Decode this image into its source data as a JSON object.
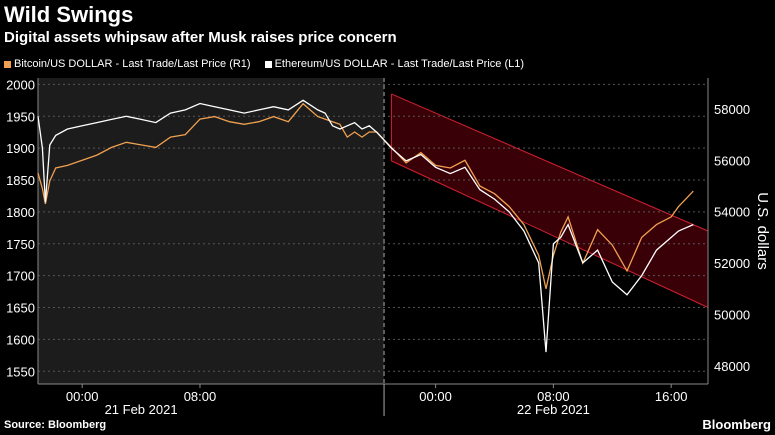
{
  "header": {
    "title": "Wild Swings",
    "subtitle": "Digital assets whipsaw after Musk raises price concern"
  },
  "legend": {
    "bitcoin": "Bitcoin/US DOLLAR - Last Trade/Last Price (R1)",
    "ethereum": "Ethereum/US DOLLAR - Last Trade/Last Price (L1)"
  },
  "footer": {
    "source": "Source: Bloomberg",
    "brand": "Bloomberg"
  },
  "colors": {
    "bitcoin": "#f0a050",
    "ethereum": "#ffffff",
    "channel_fill": "#3a0008",
    "channel_line": "#d02030",
    "background": "#000000",
    "shaded_region": "#1c1c1c"
  },
  "chart_data": {
    "type": "line",
    "x_ticks": [
      "00:00",
      "08:00",
      "00:00",
      "08:00",
      "16:00"
    ],
    "date_labels": [
      "21 Feb 2021",
      "22 Feb 2021"
    ],
    "left_axis": {
      "ylim": [
        1530,
        2010
      ],
      "ticks": [
        1550,
        1600,
        1650,
        1700,
        1750,
        1800,
        1850,
        1900,
        1950,
        2000
      ]
    },
    "right_axis": {
      "label": "U.S. dollars",
      "ylim": [
        47300,
        59200
      ],
      "ticks": [
        "48000",
        "50000",
        "52000",
        "54000",
        "56000",
        "58000"
      ]
    },
    "xlim": [
      -3,
      42.5
    ],
    "grid": true,
    "legend_position": "top-left",
    "series": [
      {
        "name": "Bitcoin/US DOLLAR - Last Trade/Last Price (R1)",
        "axis": "right",
        "x": [
          -3,
          -2.7,
          -2.5,
          -2.2,
          -1.8,
          -1,
          0,
          1,
          2,
          3,
          4,
          5,
          6,
          7,
          8,
          9,
          10,
          11,
          12,
          13,
          14,
          15,
          16,
          16.5,
          17,
          17.5,
          18,
          18.5,
          19,
          19.5,
          20,
          21,
          22,
          23,
          24,
          25,
          26,
          27,
          28,
          29,
          30,
          31,
          31.5,
          32,
          32.5,
          33,
          34,
          35,
          36,
          37,
          38,
          39,
          40,
          40.5,
          41,
          41.5
        ],
        "values": [
          55500,
          54900,
          54300,
          55200,
          55700,
          55800,
          56000,
          56200,
          56500,
          56700,
          56600,
          56500,
          56900,
          57000,
          57600,
          57700,
          57500,
          57400,
          57500,
          57700,
          57500,
          58200,
          57700,
          57600,
          57500,
          57400,
          56900,
          57100,
          56900,
          57100,
          57100,
          56500,
          55900,
          56300,
          55800,
          55700,
          56000,
          55000,
          54700,
          54200,
          53500,
          52300,
          51000,
          52300,
          53200,
          53800,
          52000,
          53300,
          52700,
          51700,
          53000,
          53500,
          53800,
          54200,
          54500,
          54800
        ]
      },
      {
        "name": "Ethereum/US DOLLAR - Last Trade/Last Price (L1)",
        "axis": "left",
        "x": [
          -3,
          -2.7,
          -2.5,
          -2.2,
          -1.8,
          -1,
          0,
          1,
          2,
          3,
          4,
          5,
          6,
          7,
          8,
          9,
          10,
          11,
          12,
          13,
          14,
          15,
          16,
          16.5,
          17,
          17.5,
          18,
          18.5,
          19,
          19.5,
          20,
          21,
          22,
          23,
          24,
          25,
          26,
          27,
          28,
          29,
          30,
          31,
          31.5,
          32,
          32.5,
          33,
          34,
          35,
          36,
          37,
          38,
          39,
          40,
          40.5,
          41,
          41.5
        ],
        "values": [
          1950,
          1900,
          1815,
          1905,
          1920,
          1930,
          1935,
          1940,
          1945,
          1950,
          1945,
          1940,
          1955,
          1960,
          1970,
          1965,
          1960,
          1955,
          1960,
          1965,
          1960,
          1975,
          1960,
          1955,
          1935,
          1930,
          1935,
          1940,
          1930,
          1935,
          1925,
          1900,
          1880,
          1890,
          1870,
          1860,
          1870,
          1835,
          1820,
          1800,
          1770,
          1720,
          1580,
          1750,
          1760,
          1780,
          1720,
          1740,
          1690,
          1670,
          1700,
          1740,
          1760,
          1770,
          1775,
          1780
        ]
      }
    ],
    "annotations": {
      "shaded_range_x": [
        -3,
        20.5
      ],
      "divider_x": 20.5,
      "channel_upper": [
        [
          21,
          1985
        ],
        [
          42.5,
          1770
        ]
      ],
      "channel_lower": [
        [
          21,
          1880
        ],
        [
          42.5,
          1650
        ]
      ]
    }
  }
}
